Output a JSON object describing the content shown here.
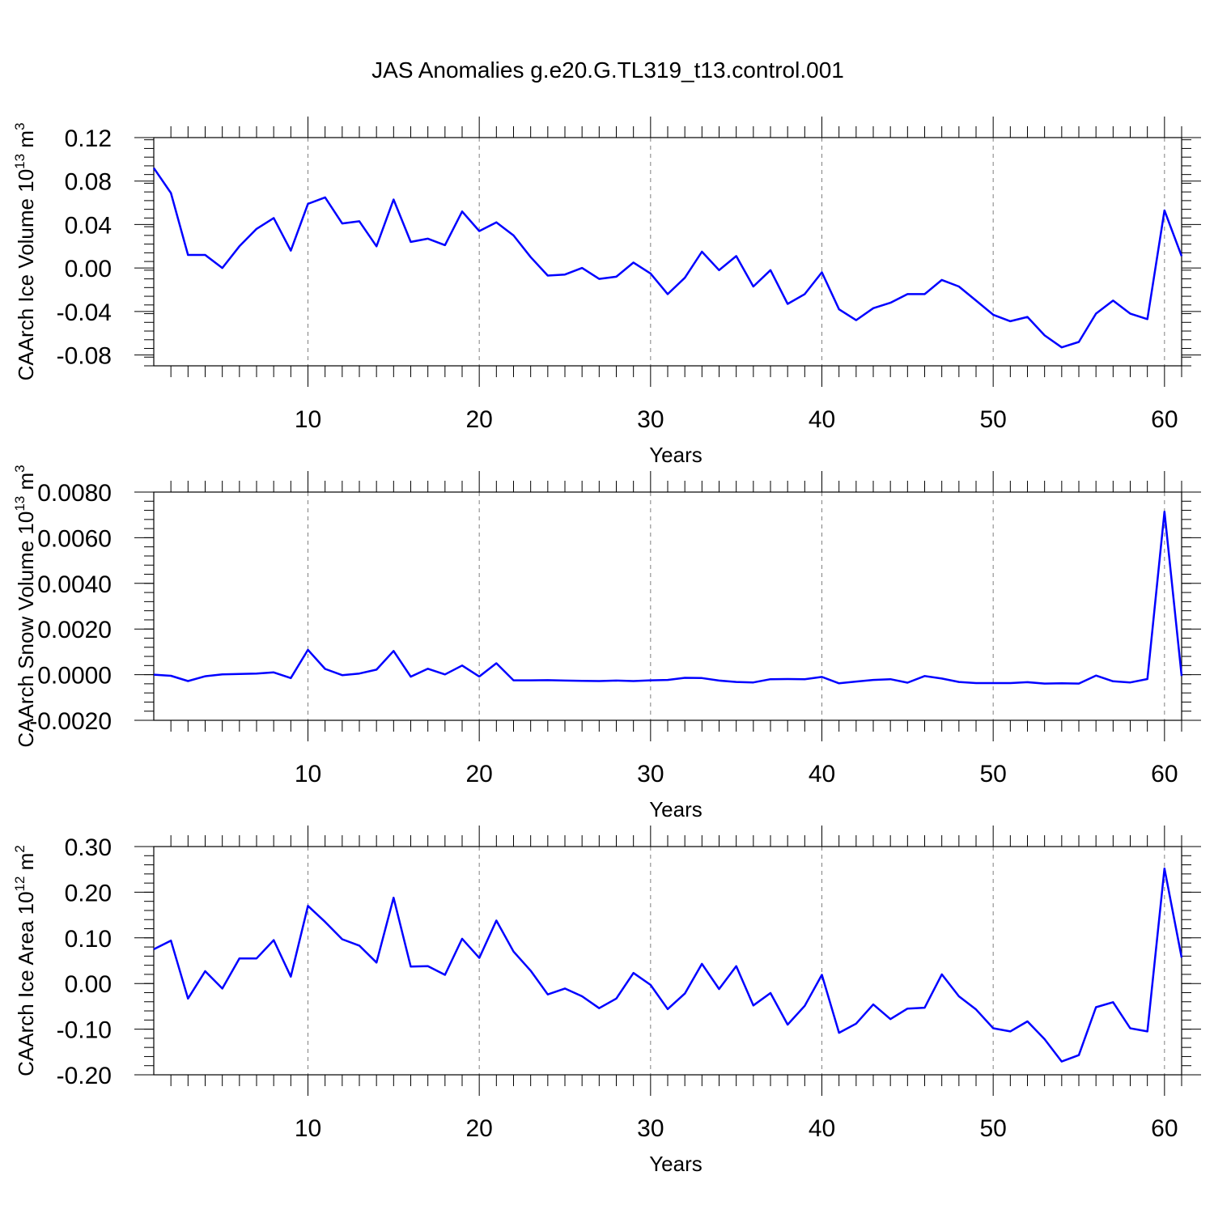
{
  "page": {
    "title": "JAS Anomalies g.e20.G.TL319_t13.control.001"
  },
  "colors": {
    "line": "#0000ff",
    "axis": "#000000",
    "grid": "#808080",
    "background": "#ffffff"
  },
  "chart_data": [
    {
      "type": "line",
      "title": "JAS Anomalies g.e20.G.TL319_t13.control.001",
      "xlabel": "Years",
      "ylabel": "CAArch Ice Volume 10",
      "ylabel_sup": "13",
      "ylabel_unit": " m",
      "ylabel_unit_sup": "3",
      "xlim": [
        1,
        61
      ],
      "ylim": [
        -0.09,
        0.12
      ],
      "yticks": [
        0.12,
        0.08,
        0.04,
        0.0,
        -0.04,
        -0.08
      ],
      "ytick_labels": [
        "0.12",
        "0.08",
        "0.04",
        "0.00",
        "-0.04",
        "-0.08"
      ],
      "yminor_step": 0.008,
      "xticks": [
        10,
        20,
        30,
        40,
        50,
        60
      ],
      "xtick_labels": [
        "10",
        "20",
        "30",
        "40",
        "50",
        "60"
      ],
      "grid_x": [
        10,
        20,
        30,
        40,
        50,
        60
      ],
      "x_start": 1,
      "series": [
        {
          "name": "CAArch Ice Volume anomaly",
          "values": [
            0.092,
            0.069,
            0.012,
            0.012,
            0.0,
            0.02,
            0.036,
            0.046,
            0.016,
            0.059,
            0.065,
            0.041,
            0.043,
            0.02,
            0.063,
            0.024,
            0.027,
            0.021,
            0.052,
            0.034,
            0.042,
            0.03,
            0.01,
            -0.007,
            -0.006,
            0.0,
            -0.01,
            -0.008,
            0.005,
            -0.005,
            -0.024,
            -0.009,
            0.015,
            -0.002,
            0.011,
            -0.017,
            -0.002,
            -0.033,
            -0.024,
            -0.004,
            -0.038,
            -0.048,
            -0.037,
            -0.032,
            -0.024,
            -0.024,
            -0.011,
            -0.017,
            -0.03,
            -0.043,
            -0.049,
            -0.045,
            -0.062,
            -0.073,
            -0.068,
            -0.042,
            -0.03,
            -0.042,
            -0.047,
            0.053,
            0.011
          ]
        }
      ]
    },
    {
      "type": "line",
      "xlabel": "Years",
      "ylabel": "CAArch Snow Volume 10",
      "ylabel_sup": "13",
      "ylabel_unit": " m",
      "ylabel_unit_sup": "3",
      "xlim": [
        1,
        61
      ],
      "ylim": [
        -0.002,
        0.008
      ],
      "yticks": [
        0.008,
        0.006,
        0.004,
        0.002,
        0.0,
        -0.002
      ],
      "ytick_labels": [
        "0.0080",
        "0.0060",
        "0.0040",
        "0.0020",
        "0.0000",
        "-0.0020"
      ],
      "yminor_step": 0.0004,
      "xticks": [
        10,
        20,
        30,
        40,
        50,
        60
      ],
      "xtick_labels": [
        "10",
        "20",
        "30",
        "40",
        "50",
        "60"
      ],
      "grid_x": [
        10,
        20,
        30,
        40,
        50,
        60
      ],
      "x_start": 1,
      "series": [
        {
          "name": "CAArch Snow Volume anomaly",
          "values": [
            0.0,
            -5e-05,
            -0.00028,
            -7e-05,
            1e-05,
            3e-05,
            5e-05,
            0.0001,
            -0.00015,
            0.00109,
            0.00025,
            -2e-05,
            5e-05,
            0.00022,
            0.00104,
            -9e-05,
            0.00026,
            1e-05,
            0.0004,
            -8e-05,
            0.0005,
            -0.00025,
            -0.00025,
            -0.00024,
            -0.00026,
            -0.00027,
            -0.00028,
            -0.00026,
            -0.00028,
            -0.00025,
            -0.00023,
            -0.00014,
            -0.00015,
            -0.00026,
            -0.00032,
            -0.00034,
            -0.0002,
            -0.00019,
            -0.0002,
            -0.0001,
            -0.00038,
            -0.0003,
            -0.00023,
            -0.0002,
            -0.00035,
            -6e-05,
            -0.00017,
            -0.00032,
            -0.00037,
            -0.00037,
            -0.00037,
            -0.00033,
            -0.00039,
            -0.00038,
            -0.00039,
            -4e-05,
            -0.00029,
            -0.00034,
            -0.00019,
            0.00714,
            -6e-05
          ]
        }
      ]
    },
    {
      "type": "line",
      "xlabel": "Years",
      "ylabel": "CAArch Ice Area 10",
      "ylabel_sup": "12",
      "ylabel_unit": " m",
      "ylabel_unit_sup": "2",
      "xlim": [
        1,
        61
      ],
      "ylim": [
        -0.2,
        0.3
      ],
      "yticks": [
        0.3,
        0.2,
        0.1,
        0.0,
        -0.1,
        -0.2
      ],
      "ytick_labels": [
        "0.30",
        "0.20",
        "0.10",
        "0.00",
        "-0.10",
        "-0.20"
      ],
      "yminor_step": 0.02,
      "xticks": [
        10,
        20,
        30,
        40,
        50,
        60
      ],
      "xtick_labels": [
        "10",
        "20",
        "30",
        "40",
        "50",
        "60"
      ],
      "grid_x": [
        10,
        20,
        30,
        40,
        50,
        60
      ],
      "x_start": 1,
      "series": [
        {
          "name": "CAArch Ice Area anomaly",
          "values": [
            0.075,
            0.094,
            -0.033,
            0.027,
            -0.011,
            0.055,
            0.055,
            0.095,
            0.015,
            0.17,
            0.135,
            0.097,
            0.083,
            0.046,
            0.188,
            0.037,
            0.038,
            0.019,
            0.098,
            0.056,
            0.138,
            0.07,
            0.028,
            -0.024,
            -0.011,
            -0.028,
            -0.054,
            -0.033,
            0.023,
            -0.003,
            -0.056,
            -0.022,
            0.043,
            -0.012,
            0.038,
            -0.048,
            -0.021,
            -0.09,
            -0.049,
            0.019,
            -0.108,
            -0.088,
            -0.046,
            -0.078,
            -0.055,
            -0.053,
            0.02,
            -0.028,
            -0.057,
            -0.098,
            -0.105,
            -0.083,
            -0.122,
            -0.171,
            -0.157,
            -0.052,
            -0.041,
            -0.098,
            -0.105,
            0.252,
            0.057
          ]
        }
      ]
    }
  ]
}
